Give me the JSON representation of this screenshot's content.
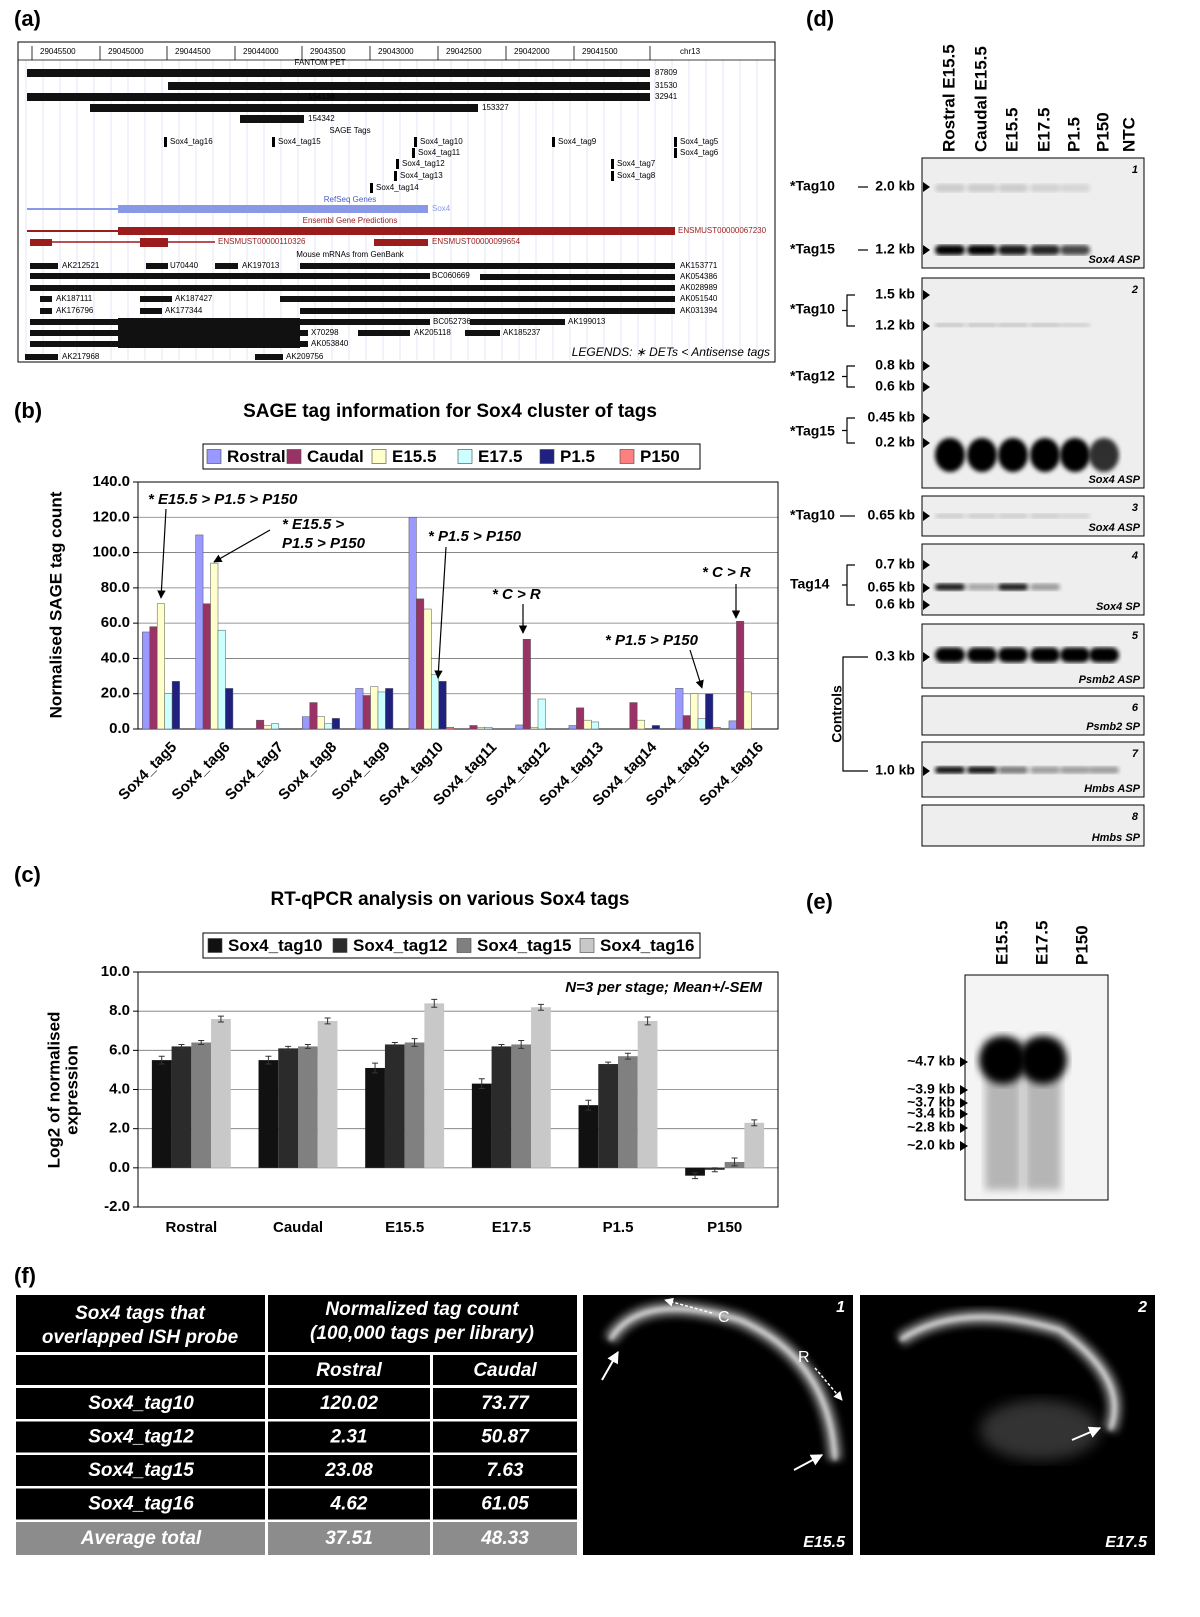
{
  "panel_labels": [
    "(a)",
    "(b)",
    "(c)",
    "(d)",
    "(e)",
    "(f)"
  ],
  "genome_browser": {
    "coordinates": [
      "29045500",
      "29045000",
      "29044500",
      "29044000",
      "29043500",
      "29043000",
      "29042500",
      "29042000",
      "29041500"
    ],
    "chromosome": "chr13",
    "fantom_pet": "FANTOM PET",
    "pet_ids": [
      "87809",
      "31530",
      "154138",
      "32941",
      "153327",
      "154342"
    ],
    "sage_title": "SAGE Tags",
    "sage_tags": [
      "Sox4_tag16",
      "Sox4_tag15",
      "Sox4_tag10",
      "Sox4_tag11",
      "Sox4_tag12",
      "Sox4_tag13",
      "Sox4_tag14",
      "Sox4_tag9",
      "Sox4_tag7",
      "Sox4_tag8",
      "Sox4_tag5",
      "Sox4_tag6"
    ],
    "refseq_title": "RefSeq Genes",
    "gene": "Sox4",
    "ensembl_title": "Ensembl Gene Predictions",
    "transcripts": [
      "ENSMUST00000067230",
      "ENSMUST00000110326",
      "ENSMUST00000099654"
    ],
    "mrna_title": "Mouse mRNAs from GenBank",
    "accessions": [
      "AK212521",
      "U70440",
      "AK197013",
      "AK153771",
      "BC060669",
      "AK054386",
      "AK028989",
      "AK187111",
      "AK187427",
      "AK051540",
      "AK176796",
      "AK177344",
      "AK031394",
      "BC052736",
      "AK199013",
      "X70298",
      "AK205118",
      "AK185237",
      "AK053840",
      "AK217968",
      "AK209756"
    ],
    "legend": "LEGENDS: ∗ DETs  < Antisense tags"
  },
  "chart_data": [
    {
      "type": "bar",
      "title": "SAGE tag information for Sox4 cluster of tags",
      "y_label": "Normalised SAGE tag count",
      "categories": [
        "Sox4_tag5",
        "Sox4_tag6",
        "Sox4_tag7",
        "Sox4_tag8",
        "Sox4_tag9",
        "Sox4_tag10",
        "Sox4_tag11",
        "Sox4_tag12",
        "Sox4_tag13",
        "Sox4_tag14",
        "Sox4_tag15",
        "Sox4_tag16"
      ],
      "series": [
        {
          "name": "Rostral",
          "color": "#9999ff",
          "values": [
            55,
            110,
            0,
            7,
            23,
            120.02,
            0,
            2.31,
            2,
            0,
            23.08,
            4.62
          ]
        },
        {
          "name": "Caudal",
          "color": "#993366",
          "values": [
            58,
            71,
            5,
            15,
            19,
            73.77,
            2,
            50.87,
            12,
            15,
            7.63,
            61.05
          ]
        },
        {
          "name": "E15.5",
          "color": "#ffffcc",
          "values": [
            71,
            94,
            2,
            7,
            24,
            68,
            1,
            1,
            5,
            5,
            20,
            21
          ]
        },
        {
          "name": "E17.5",
          "color": "#ccffff",
          "values": [
            20,
            56,
            3,
            3,
            21,
            31,
            1,
            17,
            4,
            0,
            6,
            0
          ]
        },
        {
          "name": "P1.5",
          "color": "#202080",
          "values": [
            27,
            23,
            0,
            6,
            23,
            27,
            0,
            0,
            0,
            2,
            20,
            0
          ]
        },
        {
          "name": "P150",
          "color": "#ff8080",
          "values": [
            0,
            0,
            0,
            0,
            0,
            1,
            0,
            0,
            0,
            0,
            1,
            0
          ]
        }
      ],
      "ylim": [
        0,
        140
      ],
      "yticks": [
        {
          "value": 0,
          "label": "0.0"
        },
        {
          "value": 20,
          "label": "20.0"
        },
        {
          "value": 40,
          "label": "40.0"
        },
        {
          "value": 60,
          "label": "60.0"
        },
        {
          "value": 80,
          "label": "80.0"
        },
        {
          "value": 100,
          "label": "100.0"
        },
        {
          "value": 120,
          "label": "120.0"
        },
        {
          "value": 140,
          "label": "140.0"
        }
      ],
      "grid": true,
      "annotations": [
        [
          "* E15.5 > P1.5 > P150"
        ],
        [
          "* E15.5 >",
          "P1.5 > P150"
        ],
        [
          "* P1.5 > P150"
        ],
        [
          "* C > R"
        ],
        [
          "* P1.5 > P150"
        ],
        [
          "* C > R"
        ]
      ]
    },
    {
      "type": "bar",
      "title": "RT-qPCR analysis on various Sox4 tags",
      "y_label": [
        "Log2 of normalised",
        "expression"
      ],
      "categories": [
        "Rostral",
        "Caudal",
        "E15.5",
        "E17.5",
        "P1.5",
        "P150"
      ],
      "series": [
        {
          "name": "Sox4_tag10",
          "color": "#111111",
          "values": [
            5.5,
            5.5,
            5.1,
            4.3,
            3.2,
            -0.4
          ],
          "errors": [
            0.2,
            0.2,
            0.25,
            0.25,
            0.25,
            0.15
          ]
        },
        {
          "name": "Sox4_tag12",
          "color": "#2b2b2b",
          "values": [
            6.2,
            6.1,
            6.3,
            6.2,
            5.3,
            -0.1
          ],
          "errors": [
            0.1,
            0.1,
            0.1,
            0.1,
            0.1,
            0.1
          ]
        },
        {
          "name": "Sox4_tag15",
          "color": "#808080",
          "values": [
            6.4,
            6.2,
            6.4,
            6.3,
            5.7,
            0.3
          ],
          "errors": [
            0.1,
            0.1,
            0.2,
            0.2,
            0.15,
            0.2
          ]
        },
        {
          "name": "Sox4_tag16",
          "color": "#c8c8c8",
          "values": [
            7.6,
            7.5,
            8.4,
            8.2,
            7.5,
            2.3
          ],
          "errors": [
            0.15,
            0.15,
            0.2,
            0.15,
            0.2,
            0.15
          ]
        }
      ],
      "ylim": [
        -2,
        10
      ],
      "yticks": [
        {
          "value": -2,
          "label": "-2.0"
        },
        {
          "value": 0,
          "label": "0.0"
        },
        {
          "value": 2,
          "label": "2.0"
        },
        {
          "value": 4,
          "label": "4.0"
        },
        {
          "value": 6,
          "label": "6.0"
        },
        {
          "value": 8,
          "label": "8.0"
        },
        {
          "value": 10,
          "label": "10.0"
        }
      ],
      "grid": true,
      "annotations": [
        [
          "N=3 per stage; Mean+/-SEM"
        ]
      ]
    }
  ],
  "northern_blot": {
    "lanes": [
      "Rostral E15.5",
      "Caudal E15.5",
      "E15.5",
      "E17.5",
      "P1.5",
      "P150",
      "NTC"
    ],
    "blots": [
      {
        "number": "1",
        "probe": "Sox4 ASP"
      },
      {
        "number": "2",
        "probe": "Sox4 ASP"
      },
      {
        "number": "3",
        "probe": "Sox4 ASP"
      },
      {
        "number": "4",
        "probe": "Sox4 SP"
      },
      {
        "number": "5",
        "probe": "Psmb2 ASP"
      },
      {
        "number": "6",
        "probe": "Psmb2 SP"
      },
      {
        "number": "7",
        "probe": "Hmbs ASP"
      },
      {
        "number": "8",
        "probe": "Hmbs SP"
      }
    ],
    "tags": [
      "*Tag10",
      "*Tag15",
      "*Tag10",
      "*Tag12",
      "*Tag15",
      "*Tag10",
      "Tag14"
    ],
    "sizes": [
      "2.0 kb",
      "1.2 kb",
      "1.5 kb",
      "1.2 kb",
      "0.8 kb",
      "0.6 kb",
      "0.45 kb",
      "0.2 kb",
      "0.65 kb",
      "0.7 kb",
      "0.65 kb",
      "0.6 kb",
      "0.3 kb",
      "1.0 kb"
    ],
    "controls": "Controls"
  },
  "blot_e": {
    "lanes": [
      "E15.5",
      "E17.5",
      "P150"
    ],
    "sizes": [
      "~4.7 kb",
      "~3.9 kb",
      "~3.7 kb",
      "~3.4 kb",
      "~2.8 kb",
      "~2.0 kb"
    ]
  },
  "table": {
    "header": [
      [
        "Sox4 tags that",
        "overlapped ISH probe"
      ],
      [
        "Normalized tag count",
        "(100,000 tags per library)"
      ]
    ],
    "subheader": [
      "Rostral",
      "Caudal"
    ],
    "rows": [
      [
        "Sox4_tag10",
        120.02,
        73.77
      ],
      [
        "Sox4_tag12",
        2.31,
        50.87
      ],
      [
        "Sox4_tag15",
        23.08,
        7.63
      ],
      [
        "Sox4_tag16",
        4.62,
        61.05
      ]
    ],
    "footer": [
      "Average total",
      37.51,
      48.33
    ]
  },
  "ish": [
    {
      "number": "1",
      "stage": "E15.5",
      "labels": [
        "C",
        "R"
      ]
    },
    {
      "number": "2",
      "stage": "E17.5"
    }
  ]
}
